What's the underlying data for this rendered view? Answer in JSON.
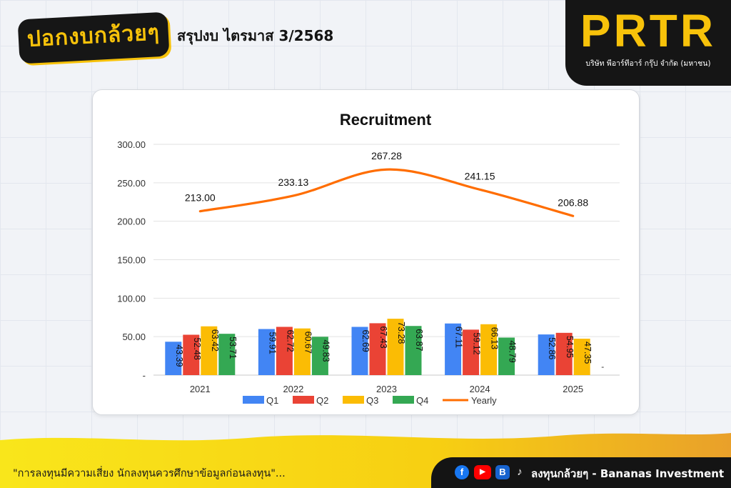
{
  "header": {
    "logo_text": "ปอกงบกล้วยๆ",
    "headline": "สรุปงบ ไตรมาส 3/2568"
  },
  "brand": {
    "name": "PRTR",
    "company": "บริษัท พีอาร์ทีอาร์ กรุ๊ป จำกัด (มหาชน)"
  },
  "footer": {
    "disclaimer": "\"การลงทุนมีความเสี่ยง นักลงทุนควรศึกษาข้อมูลก่อนลงทุน\"...",
    "channel": "ลงทุนกล้วยๆ - Bananas Investment",
    "icons": [
      "facebook-icon",
      "youtube-icon",
      "blockdit-icon",
      "tiktok-icon"
    ]
  },
  "colors": {
    "accent": "#f7c20a",
    "dark": "#151515",
    "q1": "#4285f4",
    "q2": "#ea4335",
    "q3": "#fbbc04",
    "q4": "#34a853",
    "yearly": "#ff6d00"
  },
  "chart_data": {
    "type": "bar",
    "title": "Recruitment",
    "categories": [
      "2021",
      "2022",
      "2023",
      "2024",
      "2025"
    ],
    "series": [
      {
        "name": "Q1",
        "type": "bar",
        "values": [
          43.39,
          59.91,
          62.69,
          67.11,
          52.86
        ]
      },
      {
        "name": "Q2",
        "type": "bar",
        "values": [
          52.48,
          62.72,
          67.43,
          59.12,
          54.95
        ]
      },
      {
        "name": "Q3",
        "type": "bar",
        "values": [
          63.42,
          60.67,
          73.28,
          66.13,
          47.35
        ]
      },
      {
        "name": "Q4",
        "type": "bar",
        "values": [
          53.71,
          49.83,
          63.87,
          48.79,
          null
        ]
      },
      {
        "name": "Yearly",
        "type": "line",
        "values": [
          213.0,
          233.13,
          267.28,
          241.15,
          206.88
        ]
      }
    ],
    "y_ticks": [
      "-",
      "50.00",
      "100.00",
      "150.00",
      "200.00",
      "250.00",
      "300.00"
    ],
    "missing_label": "-",
    "ylim": [
      0,
      300
    ],
    "grid": true,
    "legend": "bottom"
  }
}
